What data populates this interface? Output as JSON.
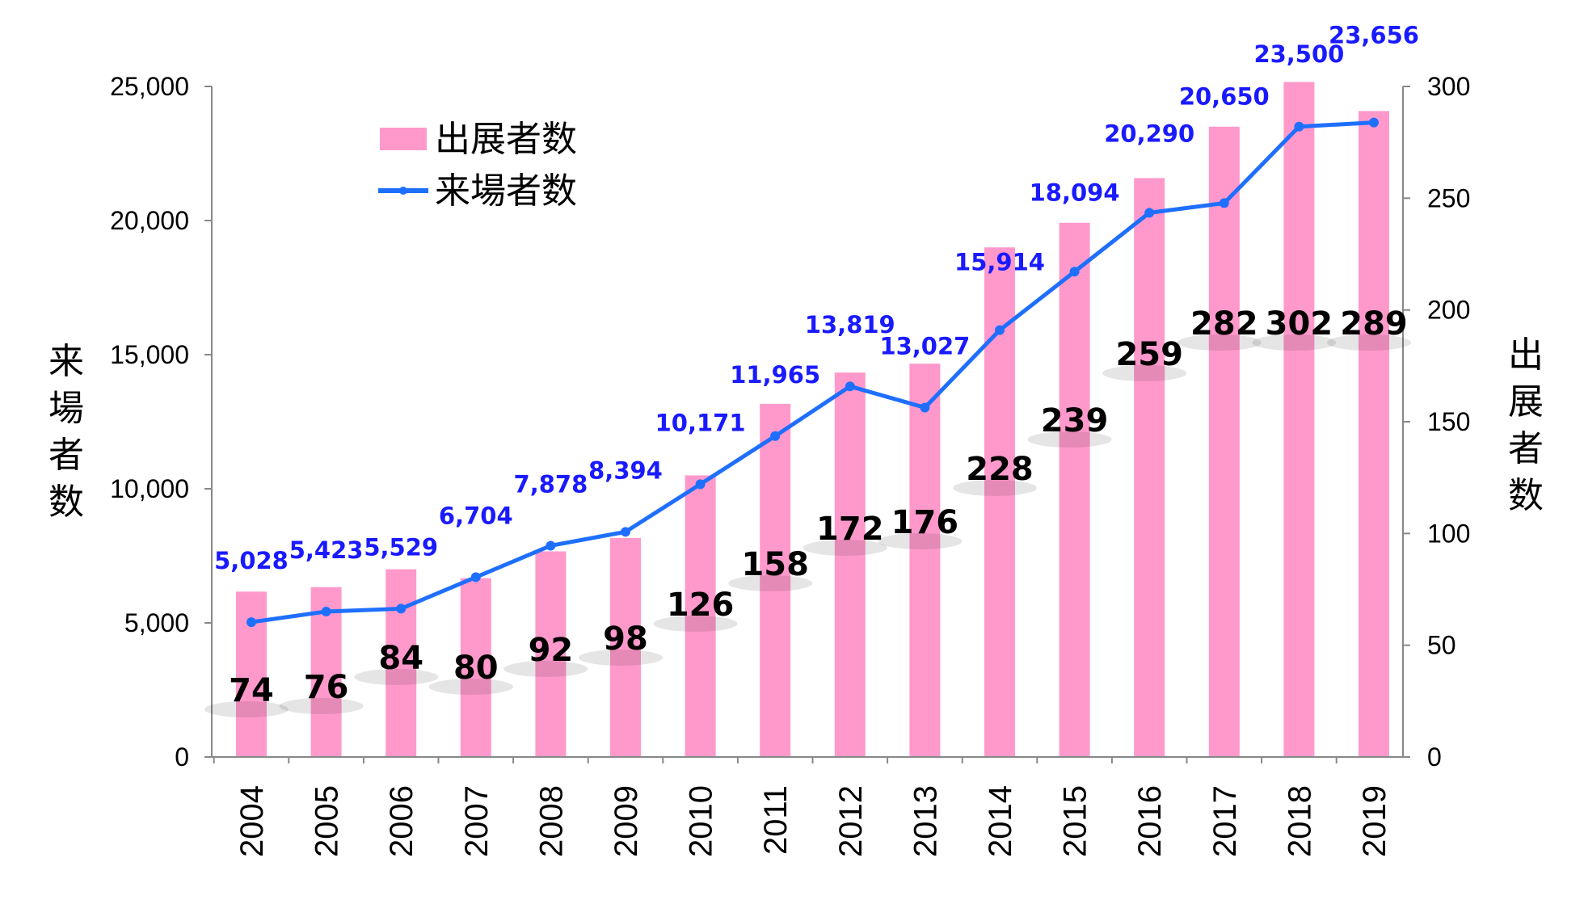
{
  "chart_data": {
    "type": "bar+line",
    "categories": [
      "2004",
      "2005",
      "2006",
      "2007",
      "2008",
      "2009",
      "2010",
      "2011",
      "2012",
      "2013",
      "2014",
      "2015",
      "2016",
      "2017",
      "2018",
      "2019"
    ],
    "series": [
      {
        "name": "出展者数",
        "type": "bar",
        "axis": "right",
        "color": "#ff99cc",
        "values": [
          74,
          76,
          84,
          80,
          92,
          98,
          126,
          158,
          172,
          176,
          228,
          239,
          259,
          282,
          302,
          289
        ],
        "labels": [
          "74",
          "76",
          "84",
          "80",
          "92",
          "98",
          "126",
          "158",
          "172",
          "176",
          "228",
          "239",
          "259",
          "282",
          "302",
          "289"
        ]
      },
      {
        "name": "来場者数",
        "type": "line",
        "axis": "left",
        "color": "#1f6fff",
        "values": [
          5028,
          5423,
          5529,
          6704,
          7878,
          8394,
          10171,
          11965,
          13819,
          13027,
          15914,
          18094,
          20290,
          20650,
          23500,
          23656
        ],
        "labels": [
          "5,028",
          "5,423",
          "5,529",
          "6,704",
          "7,878",
          "8,394",
          "10,171",
          "11,965",
          "13,819",
          "13,027",
          "15,914",
          "18,094",
          "20,290",
          "20,650",
          "23,500",
          "23,656"
        ]
      }
    ],
    "y_left": {
      "label": "来場者数",
      "range": [
        0,
        25000
      ],
      "ticks": [
        0,
        5000,
        10000,
        15000,
        20000,
        25000
      ],
      "tick_labels": [
        "0",
        "5,000",
        "10,000",
        "15,000",
        "20,000",
        "25,000"
      ]
    },
    "y_right": {
      "label": "出展者数",
      "range": [
        0,
        300
      ],
      "ticks": [
        0,
        50,
        100,
        150,
        200,
        250,
        300
      ],
      "tick_labels": [
        "0",
        "50",
        "100",
        "150",
        "200",
        "250",
        "300"
      ]
    },
    "legend_position": "top-left",
    "highlight_color": "#ff1a1a",
    "highlight_index": 15,
    "grid": false
  }
}
